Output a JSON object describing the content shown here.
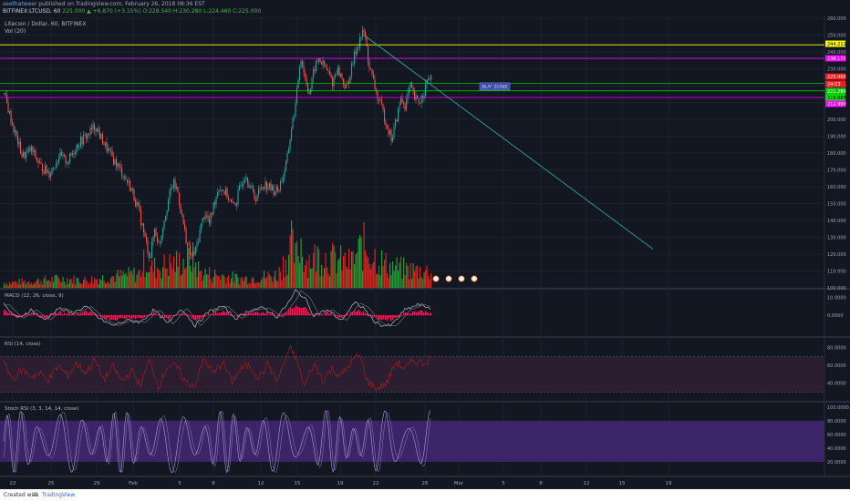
{
  "publish": {
    "author": "seethatweer",
    "text": "published on TradingView.com, February 26, 2018 08:36 EST"
  },
  "header": {
    "symbol": "BITFINEX:LTCUSD, 60",
    "close_val": "225.000",
    "change": "▲ +6.870 (+3.15%)",
    "ohlc": "O:228.540  H:230.280  L:224.460  C:225.000"
  },
  "chart_data": {
    "type": "candlestick",
    "title": "Litecoin / Dollar, 60, BITFINEX",
    "volume_label": "Vol (20)",
    "price_axis": {
      "range": [
        100,
        260
      ],
      "ticks": [
        "260.000",
        "250.000",
        "240.000",
        "230.000",
        "220.000",
        "210.000",
        "200.000",
        "190.000",
        "180.000",
        "170.000",
        "160.000",
        "150.000",
        "140.000",
        "130.000",
        "120.000",
        "110.000",
        "100.000"
      ]
    },
    "price_tags": [
      {
        "label": "244.211",
        "value": 244.211,
        "bg": "#ffff00",
        "fg": "#000000"
      },
      {
        "label": "236.170",
        "value": 236.17,
        "bg": "#ff00ff",
        "fg": "#ffffff"
      },
      {
        "label": "225.000",
        "value": 225.0,
        "bg": "#ff1a1a",
        "fg": "#ffffff"
      },
      {
        "label": "24:03",
        "value": 222.1,
        "bg": "#ff1a1a",
        "fg": "#ffffff"
      },
      {
        "label": "221.289",
        "value": 221.289,
        "bg": "#00c800",
        "fg": "#ffffff"
      },
      {
        "label": "216.888",
        "value": 216.888,
        "bg": "#00e000",
        "fg": "#000000"
      },
      {
        "label": "212.990",
        "value": 212.99,
        "bg": "#ff00ff",
        "fg": "#ffffff"
      }
    ],
    "horizontal_levels": [
      {
        "value": 244.211,
        "color": "#ffff00"
      },
      {
        "value": 236.17,
        "color": "#ff00ff"
      },
      {
        "value": 221.289,
        "color": "#00c800"
      },
      {
        "value": 216.888,
        "color": "#00e000"
      },
      {
        "value": 212.99,
        "color": "#ff00ff"
      }
    ],
    "annotation": "BUY ZONE",
    "x_ticks": [
      "22",
      "25",
      "29",
      "Feb",
      "5",
      "8",
      "12",
      "15",
      "19",
      "22",
      "26",
      "Mar",
      "5",
      "8",
      "12",
      "15",
      "19"
    ],
    "price_path": [
      [
        0,
        215
      ],
      [
        10,
        195
      ],
      [
        20,
        178
      ],
      [
        30,
        182
      ],
      [
        40,
        172
      ],
      [
        50,
        168
      ],
      [
        60,
        178
      ],
      [
        70,
        175
      ],
      [
        80,
        185
      ],
      [
        90,
        190
      ],
      [
        100,
        196
      ],
      [
        110,
        185
      ],
      [
        120,
        176
      ],
      [
        130,
        168
      ],
      [
        140,
        158
      ],
      [
        148,
        145
      ],
      [
        155,
        128
      ],
      [
        160,
        118
      ],
      [
        165,
        135
      ],
      [
        170,
        125
      ],
      [
        175,
        140
      ],
      [
        180,
        152
      ],
      [
        185,
        162
      ],
      [
        190,
        158
      ],
      [
        195,
        142
      ],
      [
        200,
        128
      ],
      [
        205,
        118
      ],
      [
        210,
        122
      ],
      [
        215,
        135
      ],
      [
        220,
        145
      ],
      [
        225,
        138
      ],
      [
        230,
        150
      ],
      [
        235,
        160
      ],
      [
        240,
        158
      ],
      [
        245,
        155
      ],
      [
        250,
        148
      ],
      [
        255,
        152
      ],
      [
        260,
        162
      ],
      [
        265,
        168
      ],
      [
        270,
        160
      ],
      [
        275,
        153
      ],
      [
        280,
        158
      ],
      [
        285,
        162
      ],
      [
        290,
        160
      ],
      [
        295,
        158
      ],
      [
        300,
        158
      ],
      [
        305,
        165
      ],
      [
        310,
        175
      ],
      [
        315,
        195
      ],
      [
        320,
        210
      ],
      [
        325,
        238
      ],
      [
        330,
        225
      ],
      [
        335,
        215
      ],
      [
        340,
        230
      ],
      [
        345,
        236
      ],
      [
        350,
        232
      ],
      [
        355,
        228
      ],
      [
        360,
        222
      ],
      [
        365,
        230
      ],
      [
        370,
        225
      ],
      [
        375,
        218
      ],
      [
        380,
        228
      ],
      [
        385,
        240
      ],
      [
        390,
        248
      ],
      [
        395,
        252
      ],
      [
        400,
        232
      ],
      [
        405,
        222
      ],
      [
        410,
        212
      ],
      [
        415,
        205
      ],
      [
        420,
        196
      ],
      [
        425,
        188
      ],
      [
        430,
        200
      ],
      [
        435,
        212
      ],
      [
        440,
        208
      ],
      [
        445,
        220
      ],
      [
        450,
        212
      ],
      [
        455,
        210
      ],
      [
        460,
        216
      ],
      [
        465,
        224
      ],
      [
        468,
        225
      ]
    ],
    "trend_line": [
      [
        395,
        250
      ],
      [
        712,
        123
      ]
    ],
    "volume_peaks": [
      [
        0,
        8
      ],
      [
        30,
        10
      ],
      [
        60,
        14
      ],
      [
        90,
        12
      ],
      [
        120,
        18
      ],
      [
        148,
        22
      ],
      [
        155,
        44
      ],
      [
        160,
        30
      ],
      [
        200,
        42
      ],
      [
        205,
        50
      ],
      [
        215,
        24
      ],
      [
        260,
        14
      ],
      [
        300,
        20
      ],
      [
        315,
        66
      ],
      [
        320,
        44
      ],
      [
        325,
        74
      ],
      [
        330,
        42
      ],
      [
        345,
        50
      ],
      [
        380,
        38
      ],
      [
        390,
        58
      ],
      [
        392,
        66
      ],
      [
        420,
        34
      ],
      [
        445,
        28
      ],
      [
        465,
        26
      ]
    ],
    "macd": {
      "label": "MACD (12, 26, close, 9)",
      "ticks": [
        "10.0000",
        "0.0000"
      ],
      "path": [
        [
          0,
          6
        ],
        [
          15,
          -2
        ],
        [
          30,
          3
        ],
        [
          45,
          -3
        ],
        [
          60,
          4
        ],
        [
          75,
          1
        ],
        [
          90,
          5
        ],
        [
          105,
          -2
        ],
        [
          120,
          -6
        ],
        [
          135,
          -3
        ],
        [
          150,
          -4
        ],
        [
          165,
          3
        ],
        [
          180,
          -5
        ],
        [
          195,
          4
        ],
        [
          210,
          -6
        ],
        [
          225,
          2
        ],
        [
          240,
          5
        ],
        [
          255,
          -2
        ],
        [
          270,
          3
        ],
        [
          285,
          4
        ],
        [
          300,
          -1
        ],
        [
          315,
          9
        ],
        [
          320,
          14
        ],
        [
          330,
          10
        ],
        [
          340,
          0
        ],
        [
          355,
          3
        ],
        [
          370,
          -3
        ],
        [
          385,
          7
        ],
        [
          395,
          4
        ],
        [
          405,
          -3
        ],
        [
          415,
          -6
        ],
        [
          425,
          -6
        ],
        [
          440,
          3
        ],
        [
          455,
          6
        ],
        [
          468,
          4
        ]
      ]
    },
    "rsi": {
      "label": "RSI (14, close)",
      "ticks": [
        "80.0000",
        "60.0000",
        "40.0000"
      ],
      "path": [
        [
          0,
          62
        ],
        [
          10,
          45
        ],
        [
          20,
          55
        ],
        [
          30,
          48
        ],
        [
          40,
          50
        ],
        [
          50,
          44
        ],
        [
          60,
          60
        ],
        [
          70,
          48
        ],
        [
          80,
          62
        ],
        [
          90,
          52
        ],
        [
          100,
          66
        ],
        [
          110,
          44
        ],
        [
          120,
          58
        ],
        [
          130,
          42
        ],
        [
          140,
          54
        ],
        [
          150,
          38
        ],
        [
          160,
          66
        ],
        [
          170,
          36
        ],
        [
          180,
          60
        ],
        [
          190,
          58
        ],
        [
          200,
          40
        ],
        [
          210,
          38
        ],
        [
          220,
          68
        ],
        [
          230,
          50
        ],
        [
          240,
          64
        ],
        [
          250,
          42
        ],
        [
          260,
          56
        ],
        [
          270,
          60
        ],
        [
          280,
          46
        ],
        [
          290,
          62
        ],
        [
          300,
          42
        ],
        [
          310,
          70
        ],
        [
          315,
          78
        ],
        [
          320,
          70
        ],
        [
          330,
          36
        ],
        [
          340,
          62
        ],
        [
          350,
          44
        ],
        [
          360,
          56
        ],
        [
          370,
          48
        ],
        [
          380,
          62
        ],
        [
          390,
          72
        ],
        [
          400,
          40
        ],
        [
          410,
          34
        ],
        [
          420,
          40
        ],
        [
          430,
          64
        ],
        [
          440,
          56
        ],
        [
          450,
          66
        ],
        [
          460,
          62
        ],
        [
          468,
          68
        ]
      ]
    },
    "stoch_rsi": {
      "label": "Stoch RSI (3, 3, 14, 14, close)",
      "ticks": [
        "100.0000",
        "80.0000",
        "60.0000",
        "40.0000",
        "20.0000"
      ],
      "band": [
        20,
        80
      ],
      "path_generator": "oscillating 0..100"
    }
  },
  "footer": {
    "created_with": "Created with",
    "brand": "TradingView"
  }
}
